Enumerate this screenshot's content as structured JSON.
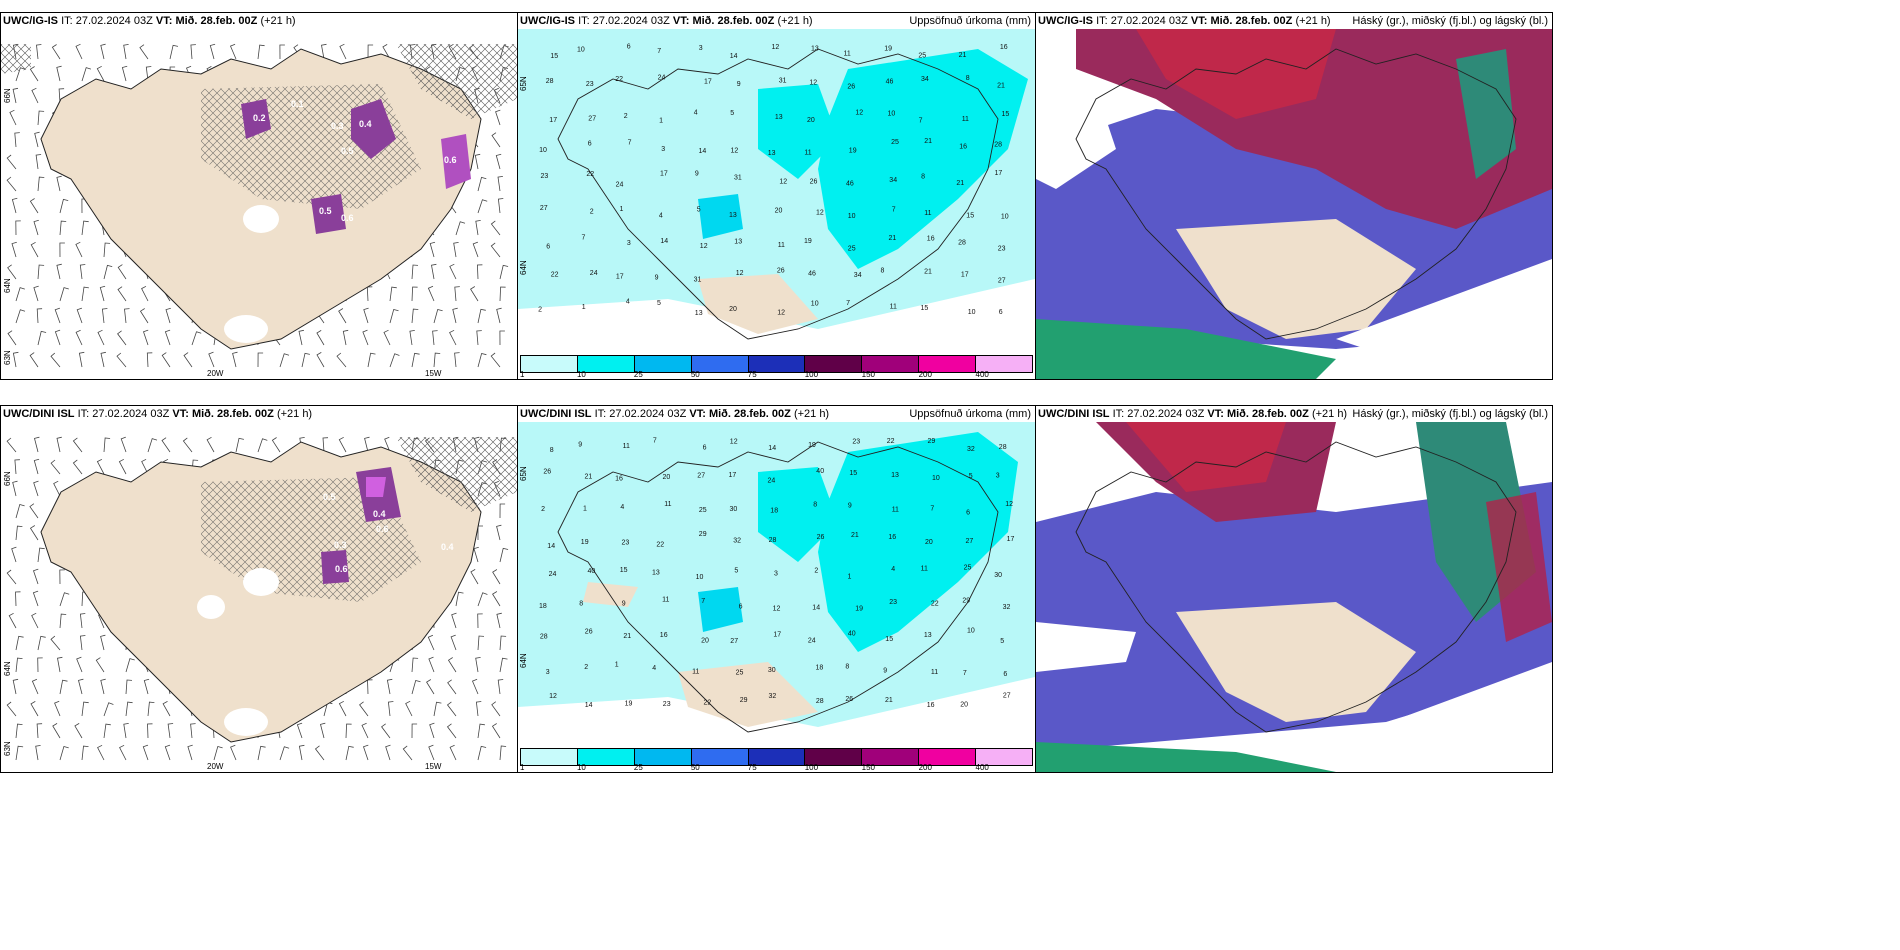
{
  "rows": [
    {
      "panels": [
        {
          "model": "UWC/IG-IS",
          "it_label": "IT:",
          "it_value": "27.02.2024 03Z",
          "vt_label": "VT:",
          "vt_value": "Mið. 28.feb. 00Z",
          "lead": "(+21 h)",
          "right_title": "",
          "lat_labels": [
            "66N",
            "64N",
            "63N"
          ],
          "lon_labels": [
            "20W",
            "15W"
          ]
        },
        {
          "model": "UWC/IG-IS",
          "it_label": "IT:",
          "it_value": "27.02.2024 03Z",
          "vt_label": "VT:",
          "vt_value": "Mið. 28.feb. 00Z",
          "lead": "(+21 h)",
          "right_title": "Uppsöfnuð úrkoma (mm)",
          "lat_labels": [
            "65N",
            "64N"
          ],
          "lon_labels": []
        },
        {
          "model": "UWC/IG-IS",
          "it_label": "IT:",
          "it_value": "27.02.2024 03Z",
          "vt_label": "VT:",
          "vt_value": "Mið. 28.feb. 00Z",
          "lead": "(+21 h)",
          "right_title": "Háský (gr.), miðský (fj.bl.) og lágský (bl.)",
          "lat_labels": [],
          "lon_labels": []
        }
      ]
    },
    {
      "panels": [
        {
          "model": "UWC/DINI ISL",
          "it_label": "IT:",
          "it_value": "27.02.2024 03Z",
          "vt_label": "VT:",
          "vt_value": "Mið. 28.feb. 00Z",
          "lead": "(+21 h)",
          "right_title": "",
          "lat_labels": [
            "66N",
            "64N",
            "63N"
          ],
          "lon_labels": [
            "20W",
            "15W"
          ]
        },
        {
          "model": "UWC/DINI ISL",
          "it_label": "IT:",
          "it_value": "27.02.2024 03Z",
          "vt_label": "VT:",
          "vt_value": "Mið. 28.feb. 00Z",
          "lead": "(+21 h)",
          "right_title": "Uppsöfnuð úrkoma (mm)",
          "lat_labels": [
            "65N",
            "64N"
          ],
          "lon_labels": []
        },
        {
          "model": "UWC/DINI ISL",
          "it_label": "IT:",
          "it_value": "27.02.2024 03Z",
          "vt_label": "VT:",
          "vt_value": "Mið. 28.feb. 00Z",
          "lead": "(+21 h)",
          "right_title": "Háský (gr.), miðský (fj.bl.) og lágský (bl.)",
          "lat_labels": [],
          "lon_labels": []
        }
      ]
    }
  ],
  "precip_legend": {
    "colors": [
      "#c8fbfb",
      "#00f0f0",
      "#00b8f0",
      "#2f6cf0",
      "#1c2fb8",
      "#600048",
      "#a0007a",
      "#f000a0",
      "#f6b0f6"
    ],
    "ticks": [
      "1",
      "10",
      "25",
      "50",
      "75",
      "100",
      "150",
      "200",
      "400"
    ]
  },
  "precip_values_top": [
    "15",
    "10",
    "6",
    "7",
    "3",
    "14",
    "12",
    "13",
    "11",
    "19",
    "25",
    "21",
    "16",
    "28",
    "23",
    "22",
    "24",
    "17",
    "9",
    "31",
    "12",
    "26",
    "46",
    "34",
    "8",
    "21",
    "17",
    "27",
    "2",
    "1",
    "4",
    "5",
    "13",
    "20",
    "12",
    "10",
    "7",
    "11"
  ],
  "precip_values_bottom": [
    "8",
    "9",
    "11",
    "7",
    "6",
    "12",
    "14",
    "19",
    "23",
    "22",
    "29",
    "32",
    "28",
    "26",
    "21",
    "16",
    "20",
    "27",
    "17",
    "24",
    "40",
    "15",
    "13",
    "10",
    "5",
    "3",
    "2",
    "1",
    "4",
    "11",
    "25",
    "30",
    "18"
  ],
  "snow_values_top": [
    "0.4",
    "0.3",
    "0.5",
    "0.6",
    "0.2",
    "0.1",
    "0.5",
    "0.6"
  ],
  "snow_values_bottom": [
    "0.5",
    "0.4",
    "0.6",
    "0.3",
    "0.6",
    "0.4"
  ],
  "colors": {
    "land": "#efe0cc",
    "sea_precip": "#b8f8f8",
    "snow_purple": "#8a3f9a",
    "cloud_high": "#b0224a",
    "cloud_mid": "#5a58c8",
    "cloud_low": "#22a070"
  }
}
